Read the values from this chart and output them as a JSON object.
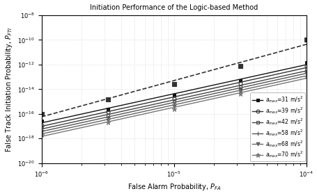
{
  "title": "Initiation Performance of the Logic-based Method",
  "xlabel": "False Alarm Probability, $P_{FA}$",
  "ylabel": "False Track Initiation Probability, $P_{FTI}$",
  "xlim_log": [
    -6,
    -4
  ],
  "ylim_log": [
    -20,
    -8
  ],
  "x_markers_log": [
    -6,
    -5.5,
    -5,
    -4.5,
    -4
  ],
  "lines": [
    {
      "key": "dashed",
      "linestyle": "--",
      "color": "#333333",
      "linewidth": 1.2,
      "marker": "s",
      "markersize": 4,
      "mfc": "#333333",
      "log_y_at_markers": [
        -16.0,
        -14.8,
        -13.6,
        -12.1,
        -10.0
      ],
      "legend": null
    },
    {
      "key": "31",
      "linestyle": "-",
      "color": "#111111",
      "linewidth": 1.0,
      "marker": "s",
      "markersize": 3.5,
      "mfc": "#111111",
      "log_y_at_markers": [
        -16.6,
        -15.6,
        -14.5,
        -13.3,
        -11.85
      ],
      "legend": "$a_{max}$=31 m/s$^2$"
    },
    {
      "key": "39",
      "linestyle": "-",
      "color": "#333333",
      "linewidth": 1.0,
      "marker": "o",
      "markersize": 3.5,
      "mfc": "none",
      "log_y_at_markers": [
        -16.9,
        -15.85,
        -14.75,
        -13.55,
        -12.1
      ],
      "legend": "$a_{max}$=39 m/s$^2$"
    },
    {
      "key": "42",
      "linestyle": "-",
      "color": "#444444",
      "linewidth": 1.0,
      "marker": "s",
      "markersize": 3.5,
      "mfc": "none",
      "log_y_at_markers": [
        -17.1,
        -16.1,
        -15.0,
        -13.8,
        -12.35
      ],
      "legend": "$a_{max}$=42 m/s$^2$"
    },
    {
      "key": "58",
      "linestyle": "-",
      "color": "#555555",
      "linewidth": 1.0,
      "marker": "+",
      "markersize": 5,
      "mfc": "#555555",
      "log_y_at_markers": [
        -17.3,
        -16.3,
        -15.2,
        -14.0,
        -12.55
      ],
      "legend": "$a_{max}$=58 m/s$^2$"
    },
    {
      "key": "68",
      "linestyle": "-",
      "color": "#666666",
      "linewidth": 1.0,
      "marker": "v",
      "markersize": 3.5,
      "mfc": "#666666",
      "log_y_at_markers": [
        -17.5,
        -16.5,
        -15.4,
        -14.2,
        -12.75
      ],
      "legend": "$a_{max}$=68 m/s$^2$"
    },
    {
      "key": "70",
      "linestyle": "-",
      "color": "#777777",
      "linewidth": 1.0,
      "marker": "*",
      "markersize": 5,
      "mfc": "#777777",
      "log_y_at_markers": [
        -17.7,
        -16.7,
        -15.6,
        -14.4,
        -12.95
      ],
      "legend": "$a_{max}$=70 m/s$^2$"
    }
  ],
  "background_color": "#ffffff",
  "grid_color": "#cccccc",
  "grid_linestyle": ":",
  "grid_linewidth": 0.5,
  "tick_fontsize": 6,
  "label_fontsize": 7,
  "title_fontsize": 7,
  "legend_fontsize": 5.5
}
